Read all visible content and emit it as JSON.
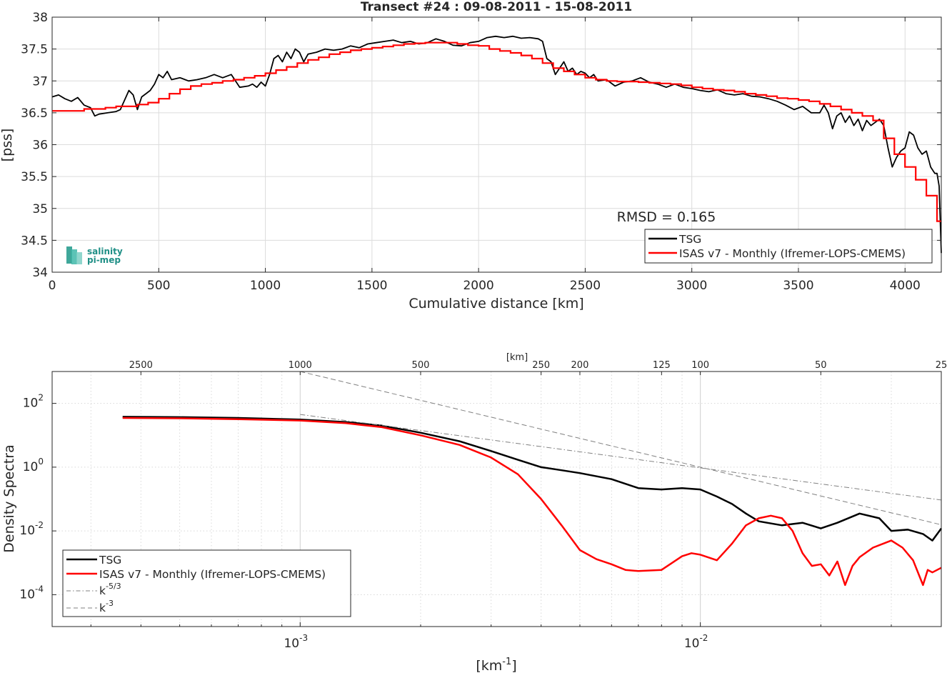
{
  "chart_data": [
    {
      "type": "line",
      "title": "Transect #24 : 09-08-2011 - 15-08-2011",
      "xlabel": "Cumulative distance [km]",
      "ylabel": "[pss]",
      "xlim": [
        0,
        4170
      ],
      "ylim": [
        34,
        38
      ],
      "xticks": [
        0,
        500,
        1000,
        1500,
        2000,
        2500,
        3000,
        3500,
        4000
      ],
      "xtick_labels": [
        "0",
        "500",
        "1000",
        "1500",
        "2000",
        "2500",
        "3000",
        "3500",
        "4000"
      ],
      "yticks": [
        34,
        34.5,
        35,
        35.5,
        36,
        36.5,
        37,
        37.5,
        38
      ],
      "ytick_labels": [
        "34",
        "34.5",
        "35",
        "35.5",
        "36",
        "36.5",
        "37",
        "37.5",
        "38"
      ],
      "grid": true,
      "legend_position": "bottom-right",
      "annotation": "RMSD = 0.165",
      "logo": {
        "line1": "salinity",
        "line2": "pi-mep"
      },
      "series": [
        {
          "name": "TSG",
          "color": "#000000",
          "x": [
            0,
            30,
            60,
            90,
            120,
            150,
            180,
            200,
            220,
            260,
            300,
            320,
            340,
            360,
            380,
            400,
            420,
            440,
            460,
            480,
            500,
            520,
            540,
            560,
            600,
            640,
            680,
            720,
            760,
            800,
            840,
            880,
            920,
            940,
            960,
            980,
            1000,
            1020,
            1040,
            1060,
            1080,
            1100,
            1120,
            1140,
            1160,
            1180,
            1200,
            1240,
            1280,
            1320,
            1360,
            1400,
            1440,
            1480,
            1520,
            1560,
            1600,
            1640,
            1680,
            1720,
            1760,
            1800,
            1840,
            1880,
            1920,
            1960,
            2000,
            2040,
            2080,
            2120,
            2160,
            2200,
            2240,
            2280,
            2300,
            2320,
            2340,
            2360,
            2380,
            2400,
            2420,
            2440,
            2460,
            2480,
            2500,
            2520,
            2540,
            2560,
            2600,
            2640,
            2680,
            2720,
            2760,
            2800,
            2840,
            2880,
            2920,
            2960,
            3000,
            3040,
            3080,
            3120,
            3160,
            3200,
            3240,
            3280,
            3320,
            3360,
            3400,
            3440,
            3480,
            3520,
            3560,
            3600,
            3620,
            3640,
            3660,
            3680,
            3700,
            3720,
            3740,
            3760,
            3780,
            3800,
            3820,
            3840,
            3860,
            3880,
            3900,
            3920,
            3940,
            3960,
            3980,
            4000,
            4020,
            4040,
            4060,
            4080,
            4100,
            4120,
            4140,
            4150,
            4160,
            4170
          ],
          "y": [
            36.75,
            36.78,
            36.72,
            36.68,
            36.74,
            36.62,
            36.58,
            36.45,
            36.48,
            36.5,
            36.52,
            36.55,
            36.7,
            36.85,
            36.78,
            36.55,
            36.75,
            36.8,
            36.85,
            36.95,
            37.1,
            37.05,
            37.15,
            37.02,
            37.05,
            37.0,
            37.02,
            37.05,
            37.1,
            37.05,
            37.1,
            36.9,
            36.92,
            36.95,
            36.9,
            36.98,
            36.92,
            37.1,
            37.35,
            37.4,
            37.3,
            37.45,
            37.35,
            37.5,
            37.45,
            37.3,
            37.42,
            37.45,
            37.5,
            37.48,
            37.5,
            37.55,
            37.52,
            37.58,
            37.6,
            37.62,
            37.64,
            37.6,
            37.62,
            37.58,
            37.6,
            37.66,
            37.62,
            37.56,
            37.55,
            37.6,
            37.62,
            37.68,
            37.7,
            37.68,
            37.7,
            37.67,
            37.68,
            37.66,
            37.62,
            37.35,
            37.3,
            37.1,
            37.2,
            37.3,
            37.15,
            37.2,
            37.1,
            37.15,
            37.12,
            37.05,
            37.1,
            37.0,
            37.02,
            36.92,
            36.98,
            37.0,
            37.05,
            36.98,
            36.95,
            36.9,
            36.95,
            36.9,
            36.88,
            36.85,
            36.83,
            36.86,
            36.8,
            36.78,
            36.8,
            36.76,
            36.75,
            36.72,
            36.68,
            36.62,
            36.55,
            36.6,
            36.5,
            36.5,
            36.62,
            36.5,
            36.25,
            36.45,
            36.5,
            36.35,
            36.45,
            36.3,
            36.4,
            36.22,
            36.38,
            36.3,
            36.35,
            36.4,
            36.3,
            35.95,
            35.65,
            35.8,
            35.9,
            35.95,
            36.2,
            36.15,
            35.95,
            35.85,
            35.9,
            35.65,
            35.55,
            35.55,
            35.35,
            34.3
          ]
        },
        {
          "name": "ISAS v7 - Monthly (Ifremer-LOPS-CMEMS)",
          "color": "#ff0000",
          "x": [
            0,
            150,
            250,
            300,
            350,
            400,
            450,
            500,
            550,
            600,
            650,
            700,
            750,
            800,
            850,
            900,
            950,
            1000,
            1050,
            1100,
            1150,
            1200,
            1250,
            1300,
            1350,
            1400,
            1450,
            1500,
            1550,
            1600,
            1650,
            1700,
            1750,
            1800,
            1850,
            1900,
            1950,
            2000,
            2050,
            2100,
            2150,
            2200,
            2250,
            2300,
            2350,
            2400,
            2450,
            2500,
            2550,
            2600,
            2650,
            2700,
            2750,
            2800,
            2850,
            2900,
            2950,
            3000,
            3050,
            3100,
            3150,
            3200,
            3250,
            3300,
            3350,
            3400,
            3450,
            3500,
            3550,
            3600,
            3650,
            3700,
            3750,
            3800,
            3850,
            3900,
            3950,
            4000,
            4050,
            4100,
            4150,
            4170
          ],
          "y": [
            36.53,
            36.56,
            36.58,
            36.6,
            36.6,
            36.63,
            36.66,
            36.72,
            36.8,
            36.87,
            36.92,
            36.95,
            36.97,
            37.0,
            37.02,
            37.05,
            37.08,
            37.12,
            37.17,
            37.22,
            37.28,
            37.33,
            37.37,
            37.42,
            37.45,
            37.48,
            37.5,
            37.52,
            37.54,
            37.56,
            37.58,
            37.59,
            37.6,
            37.6,
            37.6,
            37.58,
            37.56,
            37.55,
            37.5,
            37.47,
            37.44,
            37.4,
            37.35,
            37.28,
            37.2,
            37.15,
            37.1,
            37.05,
            37.02,
            37.0,
            36.99,
            36.99,
            36.98,
            36.97,
            36.96,
            36.95,
            36.93,
            36.9,
            36.88,
            36.86,
            36.85,
            36.83,
            36.8,
            36.78,
            36.76,
            36.73,
            36.72,
            36.7,
            36.68,
            36.64,
            36.6,
            36.55,
            36.5,
            36.45,
            36.38,
            36.1,
            35.85,
            35.65,
            35.45,
            35.2,
            34.8,
            34.8
          ]
        }
      ]
    },
    {
      "type": "line",
      "xlabel": "[km⁻¹]",
      "ylabel": "Density Spectra",
      "xscale": "log",
      "yscale": "log",
      "xlim": [
        0.00024,
        0.04
      ],
      "ylim": [
        1e-05,
        1000
      ],
      "xticks": [
        0.001,
        0.01
      ],
      "xtick_labels": [
        "10",
        "10"
      ],
      "xtick_exponents": [
        "-3",
        "-2"
      ],
      "yticks": [
        0.0001,
        0.01,
        1,
        100
      ],
      "ytick_labels": [
        "10",
        "10",
        "10",
        "10"
      ],
      "ytick_exponents": [
        "-4",
        "-2",
        "0",
        "2"
      ],
      "top_axis_label": "[km]",
      "top_ticks_km": [
        2500,
        1000,
        500,
        250,
        200,
        125,
        100,
        50,
        25
      ],
      "top_tick_labels": [
        "2500",
        "1000",
        "500",
        "250",
        "200",
        "125",
        "100",
        "50",
        "25"
      ],
      "grid": true,
      "legend_position": "bottom-left",
      "series": [
        {
          "name": "TSG",
          "color": "#000000",
          "x": [
            0.00036,
            0.0005,
            0.0007,
            0.001,
            0.0013,
            0.0016,
            0.002,
            0.0025,
            0.003,
            0.0035,
            0.004,
            0.0045,
            0.005,
            0.006,
            0.007,
            0.008,
            0.009,
            0.01,
            0.011,
            0.012,
            0.013,
            0.014,
            0.016,
            0.018,
            0.02,
            0.022,
            0.025,
            0.028,
            0.03,
            0.033,
            0.036,
            0.038,
            0.04
          ],
          "y": [
            38,
            37,
            35,
            31,
            26,
            20,
            12,
            6.5,
            3.2,
            1.7,
            1.0,
            0.8,
            0.65,
            0.42,
            0.22,
            0.2,
            0.22,
            0.2,
            0.12,
            0.07,
            0.035,
            0.02,
            0.015,
            0.018,
            0.012,
            0.018,
            0.035,
            0.025,
            0.01,
            0.011,
            0.008,
            0.005,
            0.012
          ]
        },
        {
          "name": "ISAS v7 - Monthly (Ifremer-LOPS-CMEMS)",
          "color": "#ff0000",
          "x": [
            0.00036,
            0.0005,
            0.0007,
            0.001,
            0.0013,
            0.0016,
            0.002,
            0.0025,
            0.003,
            0.0035,
            0.004,
            0.0045,
            0.005,
            0.0055,
            0.006,
            0.0065,
            0.007,
            0.008,
            0.009,
            0.0095,
            0.01,
            0.011,
            0.012,
            0.013,
            0.014,
            0.015,
            0.016,
            0.017,
            0.018,
            0.019,
            0.02,
            0.021,
            0.022,
            0.023,
            0.024,
            0.025,
            0.027,
            0.03,
            0.032,
            0.034,
            0.036,
            0.037,
            0.038,
            0.04
          ],
          "y": [
            35,
            34,
            32,
            29,
            24,
            18,
            10,
            5,
            2.0,
            0.6,
            0.1,
            0.015,
            0.0025,
            0.0013,
            0.0009,
            0.0006,
            0.00055,
            0.0006,
            0.0016,
            0.002,
            0.0018,
            0.0012,
            0.004,
            0.015,
            0.025,
            0.03,
            0.025,
            0.01,
            0.002,
            0.0008,
            0.0009,
            0.0004,
            0.0011,
            0.0002,
            0.0008,
            0.0015,
            0.003,
            0.005,
            0.003,
            0.0012,
            0.0002,
            0.0006,
            0.0005,
            0.0007
          ]
        },
        {
          "name": "k-5/3",
          "color": "#808080",
          "dash": "dashdot",
          "x": [
            0.001,
            0.04
          ],
          "y": [
            45,
            0.093
          ]
        },
        {
          "name": "k-3",
          "color": "#808080",
          "dash": "dashed",
          "x": [
            0.001,
            0.04
          ],
          "y": [
            1000,
            0.0156
          ]
        }
      ],
      "legend": [
        {
          "label": "TSG"
        },
        {
          "label": "ISAS v7 - Monthly (Ifremer-LOPS-CMEMS)"
        },
        {
          "label": "k",
          "sup": "-5/3"
        },
        {
          "label": "k",
          "sup": "-3"
        }
      ]
    }
  ]
}
